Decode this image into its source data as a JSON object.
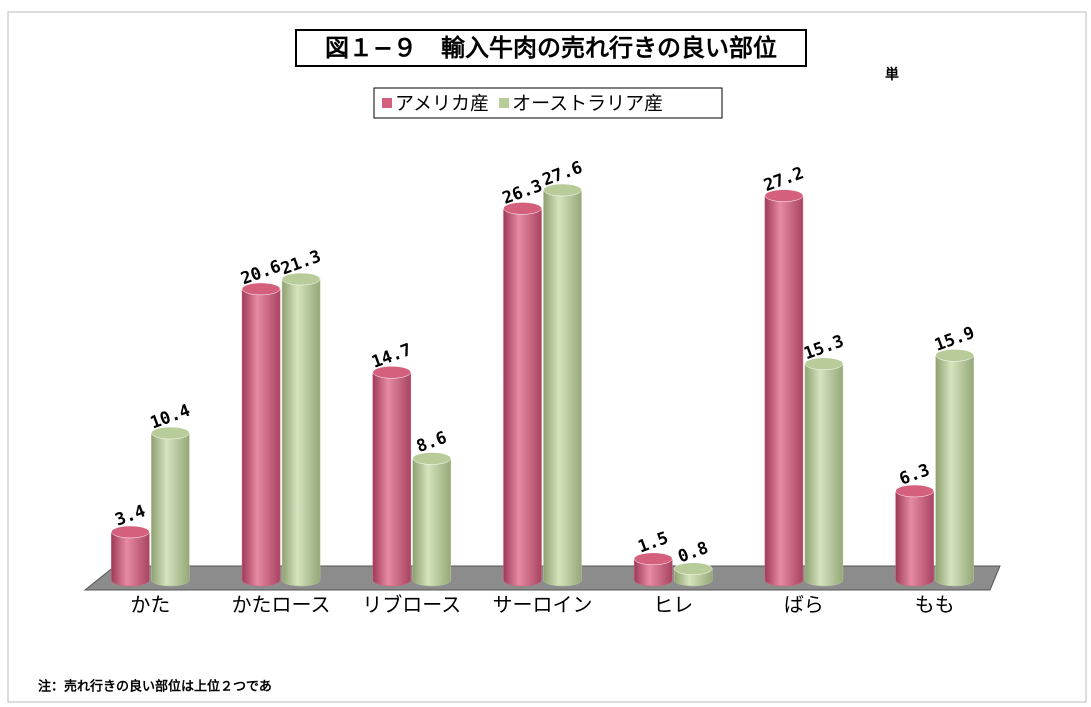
{
  "chart_data": {
    "type": "bar",
    "title": "図１−９　輸入牛肉の売れ行きの良い部位",
    "unit_label": "単",
    "note": "注：売れ行きの良い部位は上位２つであ",
    "categories": [
      "かた",
      "かたロース",
      "リブロース",
      "サーロイン",
      "ヒレ",
      "ばら",
      "もも"
    ],
    "series": [
      {
        "name": "アメリカ産",
        "color": "#d4607e",
        "values": [
          3.4,
          20.6,
          14.7,
          26.3,
          1.5,
          27.2,
          6.3
        ]
      },
      {
        "name": "オーストラリア産",
        "color": "#b8cc9a",
        "values": [
          10.4,
          21.3,
          8.6,
          27.6,
          0.8,
          15.3,
          15.9
        ]
      }
    ],
    "legend": "top"
  }
}
